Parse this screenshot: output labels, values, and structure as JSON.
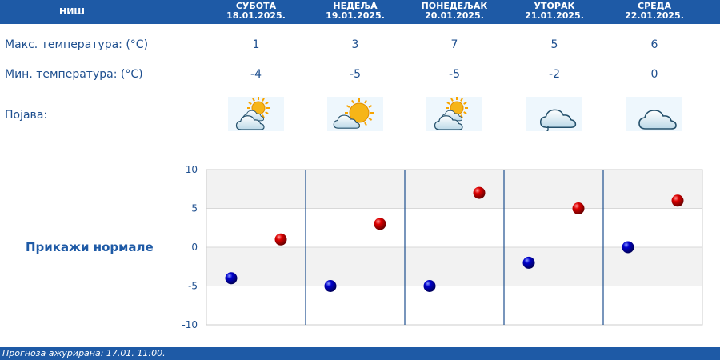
{
  "header": {
    "city": "НИШ",
    "days": [
      {
        "day": "СУБОТА",
        "date": "18.01.2025."
      },
      {
        "day": "НЕДЕЉА",
        "date": "19.01.2025."
      },
      {
        "day": "ПОНЕДЕЉАК",
        "date": "20.01.2025."
      },
      {
        "day": "УТОРАК",
        "date": "21.01.2025."
      },
      {
        "day": "СРЕДА",
        "date": "22.01.2025."
      }
    ]
  },
  "rows": {
    "max_label": "Макс. температура: (°C)",
    "min_label": "Мин. температура: (°C)",
    "phenomenon_label": "Појава:",
    "max_values": [
      "1",
      "3",
      "7",
      "5",
      "6"
    ],
    "min_values": [
      "-4",
      "-5",
      "-5",
      "-2",
      "0"
    ],
    "icons": [
      "partly-cloudy-icon",
      "mostly-sunny-icon",
      "partly-cloudy-icon",
      "cloudy-drizzle-icon",
      "cloudy-icon"
    ]
  },
  "normals_button": "Прикажи нормале",
  "footer": {
    "text": "Прогноза ажурирана:  17.01. 11:00."
  },
  "colors": {
    "header_bg": "#1e5aa6",
    "text": "#1e4f8f",
    "max_dot": "#dd0000",
    "min_dot": "#0000cc",
    "grid_band": "#f2f2f2",
    "separator": "#1e4f8f"
  },
  "chart_data": {
    "type": "scatter",
    "categories": [
      "18.01.2025.",
      "19.01.2025.",
      "20.01.2025.",
      "21.01.2025.",
      "22.01.2025."
    ],
    "series": [
      {
        "values": [
          -4,
          -5,
          -5,
          -2,
          0
        ],
        "color": "#0000cc"
      },
      {
        "values": [
          1,
          3,
          7,
          5,
          6
        ],
        "color": "#dd0000"
      }
    ],
    "ylim": [
      -10,
      10
    ],
    "yticks": [
      10,
      5,
      0,
      -5,
      -10
    ],
    "grid": true
  }
}
